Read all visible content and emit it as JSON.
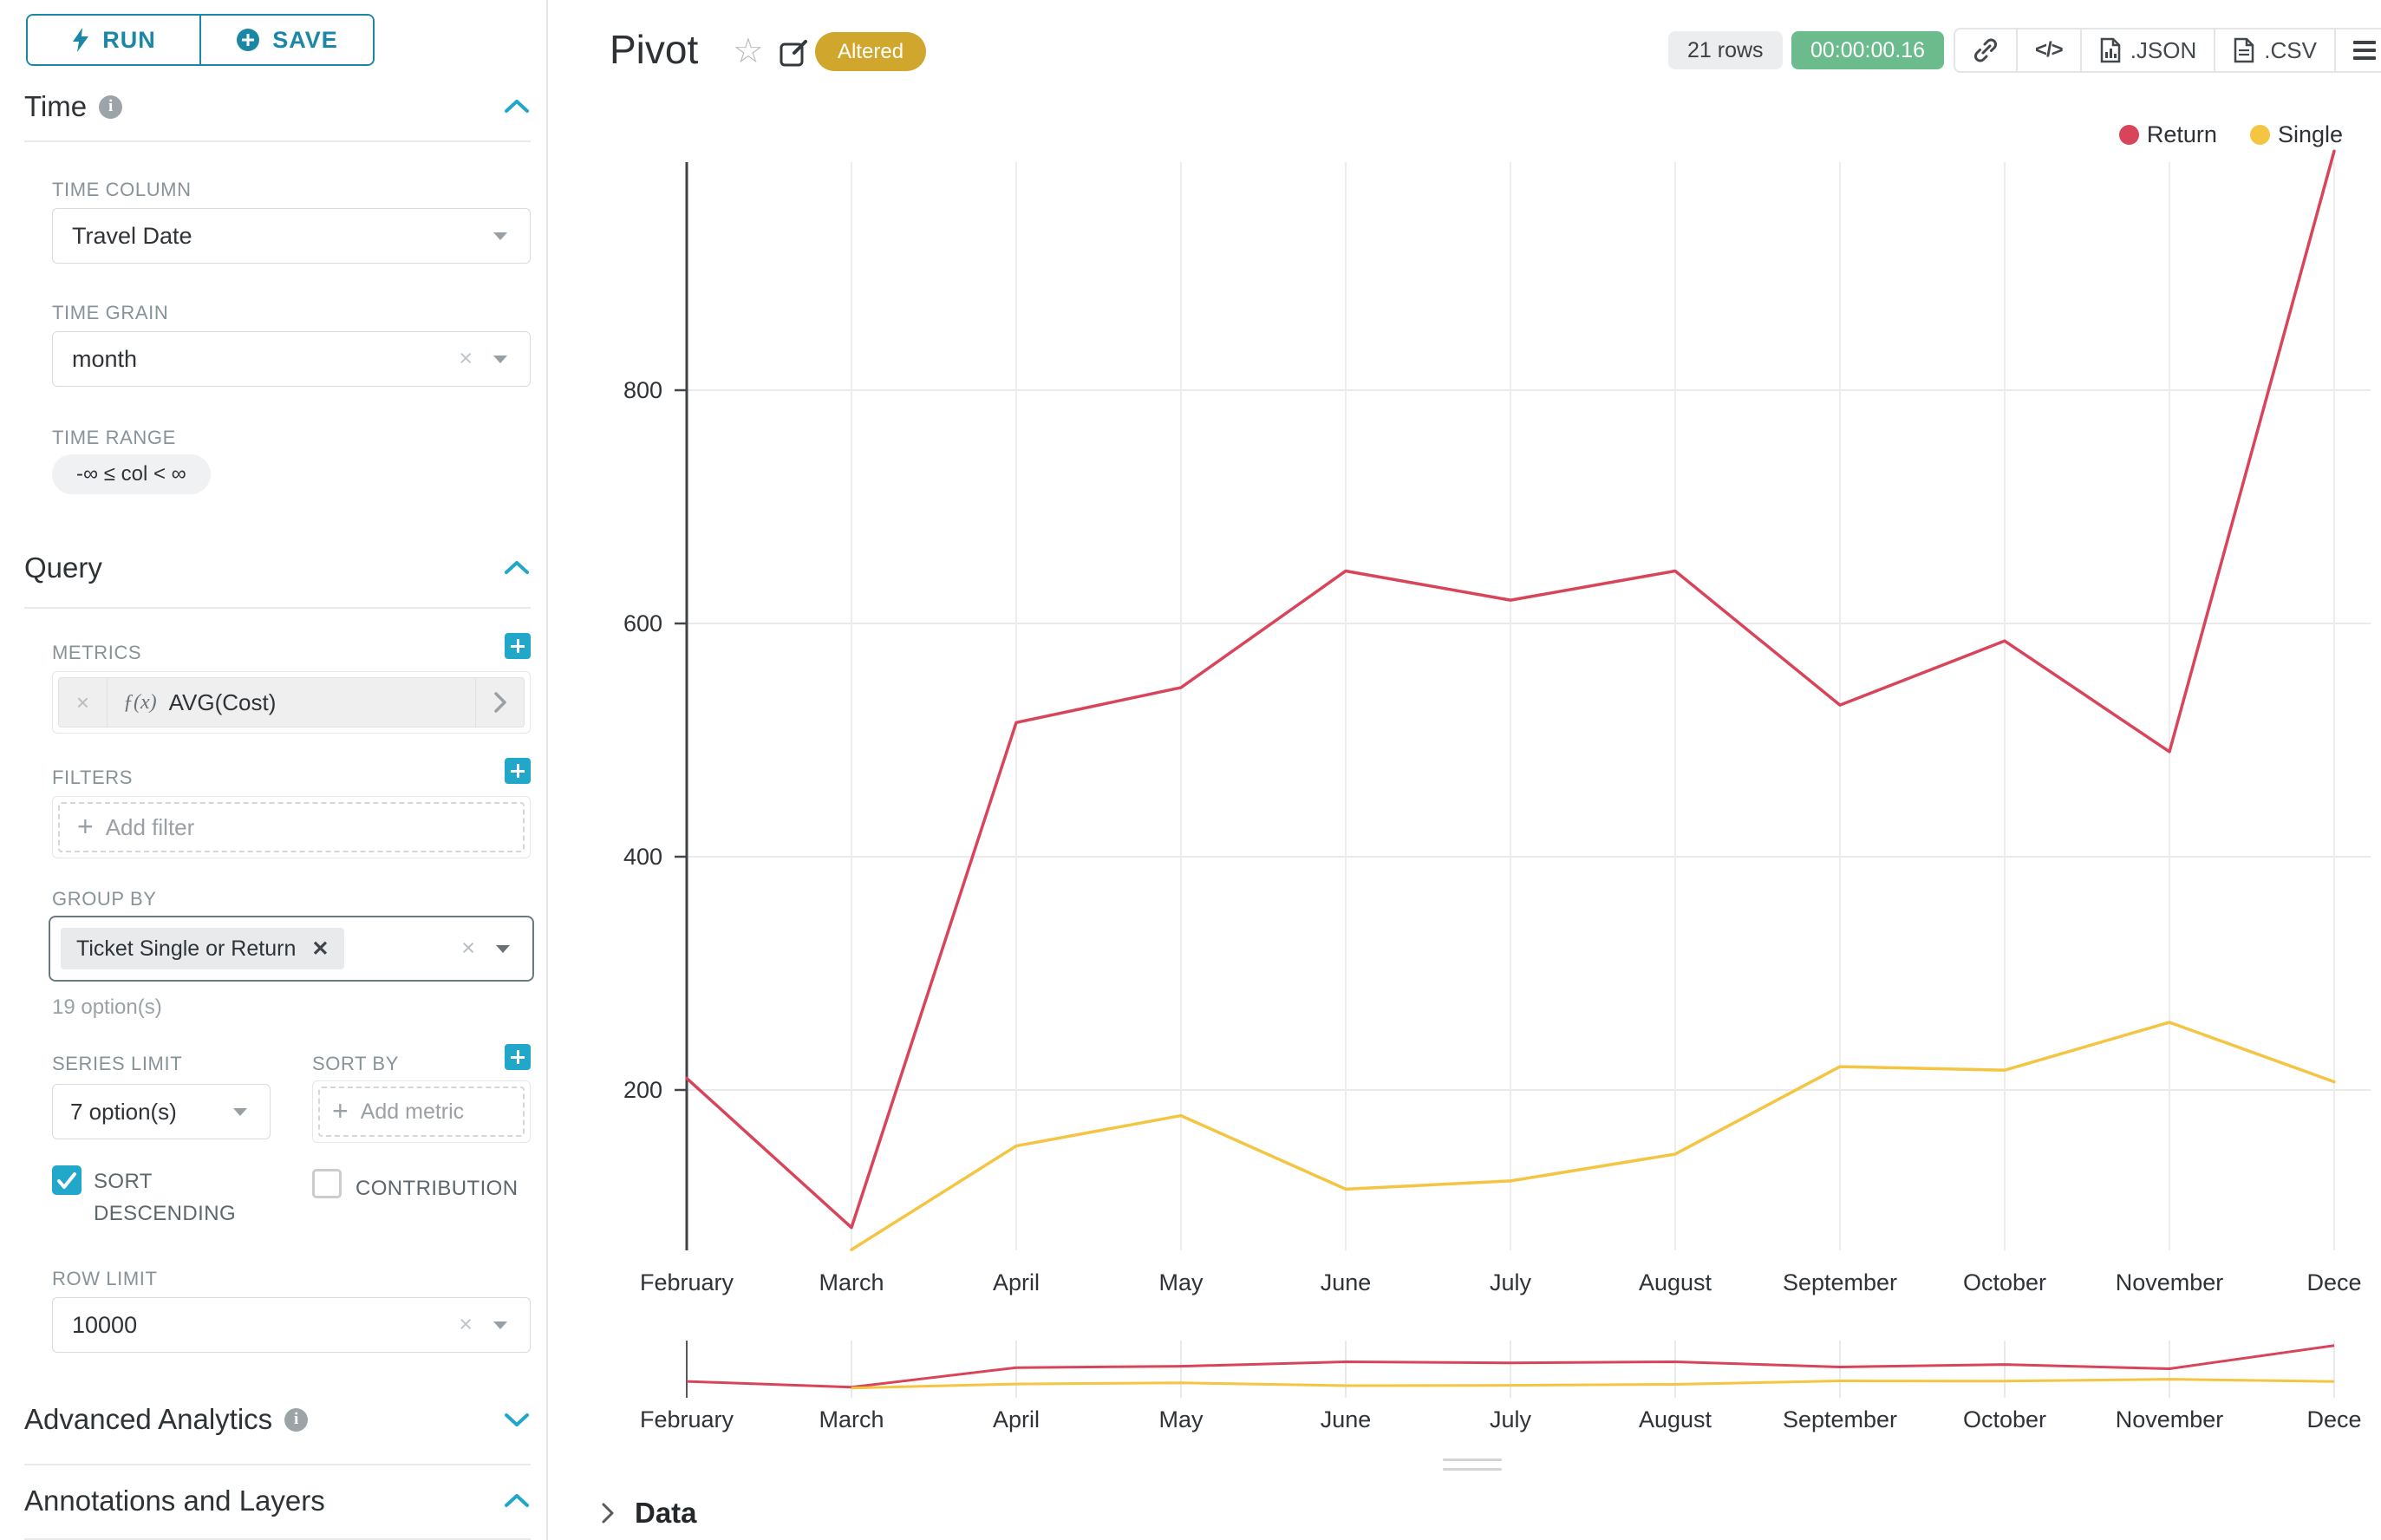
{
  "colors": {
    "primary": "#20A7C9",
    "runsave": "#1B87A6",
    "altered": "#D1A62C",
    "timer": "#6CBB8C"
  },
  "sidebar": {
    "run_label": "RUN",
    "save_label": "SAVE",
    "time": {
      "title": "Time",
      "column_label": "TIME COLUMN",
      "column_value": "Travel Date",
      "grain_label": "TIME GRAIN",
      "grain_value": "month",
      "range_label": "TIME RANGE",
      "range_value": "-∞ ≤ col < ∞"
    },
    "query": {
      "title": "Query",
      "metrics_label": "METRICS",
      "metric_fx": "ƒ(x)",
      "metric_value": "AVG(Cost)",
      "filters_label": "FILTERS",
      "add_filter_label": "Add filter",
      "group_by_label": "GROUP BY",
      "group_by_value": "Ticket Single or Return",
      "group_by_hint": "19 option(s)",
      "series_limit_label": "SERIES LIMIT",
      "series_limit_value": "7 option(s)",
      "sort_by_label": "SORT BY",
      "add_metric_label": "Add metric",
      "sort_descending_label": "SORT DESCENDING",
      "contribution_label": "CONTRIBUTION",
      "row_limit_label": "ROW LIMIT",
      "row_limit_value": "10000"
    },
    "advanced_analytics_title": "Advanced Analytics",
    "annotations_title": "Annotations and Layers"
  },
  "header": {
    "title": "Pivot",
    "altered_badge": "Altered",
    "rows_badge": "21 rows",
    "timer": "00:00:00.16",
    "code_icon_label": "</>",
    "json_label": ".JSON",
    "csv_label": ".CSV"
  },
  "footer": {
    "data_label": "Data"
  },
  "chart_data": {
    "type": "line",
    "title": "",
    "xlabel": "",
    "ylabel": "",
    "grid": true,
    "legend_position": "top-right",
    "x": [
      "February",
      "March",
      "April",
      "May",
      "June",
      "July",
      "August",
      "September",
      "October",
      "November",
      "Dece"
    ],
    "series": [
      {
        "name": "Return",
        "color": "#D8455A",
        "values": [
          210,
          82,
          515,
          545,
          645,
          620,
          645,
          530,
          585,
          490,
          1005
        ]
      },
      {
        "name": "Single",
        "color": "#F4C542",
        "values": [
          null,
          63,
          152,
          178,
          115,
          122,
          145,
          220,
          217,
          258,
          207
        ]
      }
    ],
    "yticks": [
      200,
      400,
      600,
      800
    ],
    "ylim": [
      62,
      1010
    ],
    "mini_preview": true
  }
}
